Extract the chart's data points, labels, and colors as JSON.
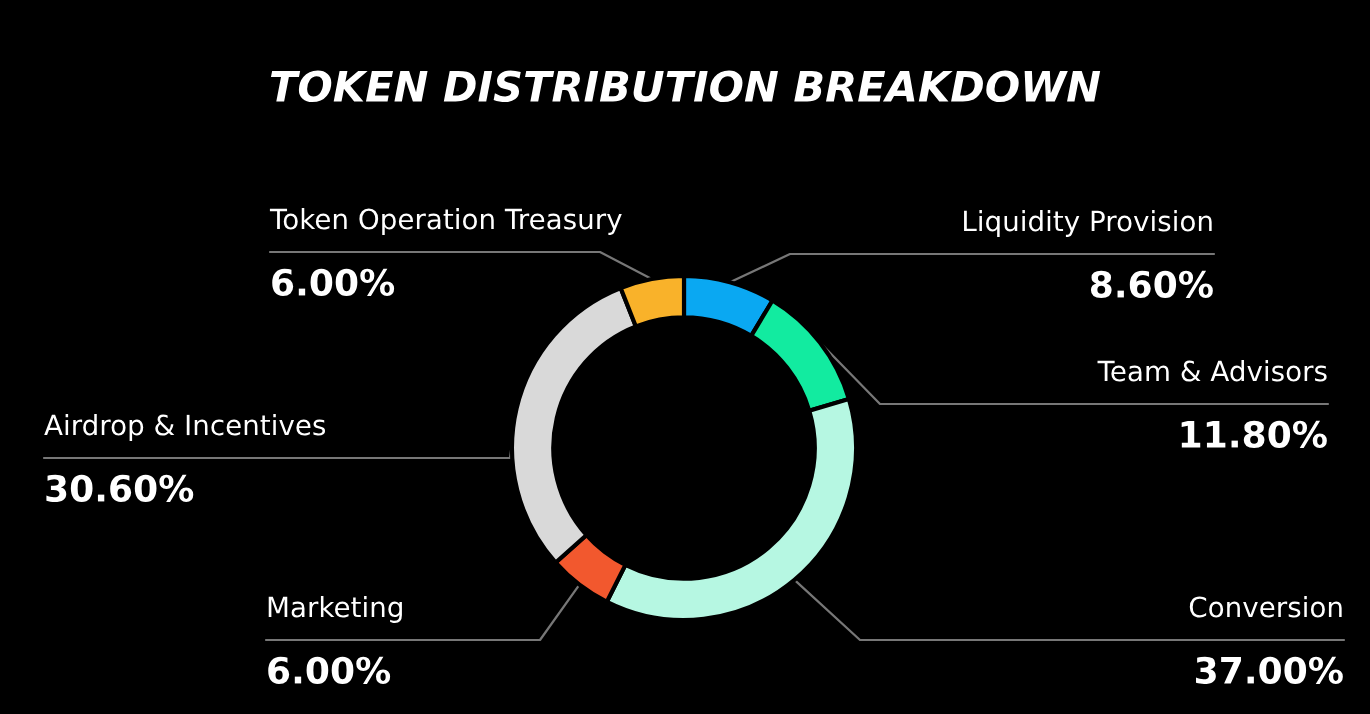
{
  "chart_data": {
    "type": "donut",
    "title": "TOKEN DISTRIBUTION BREAKDOWN",
    "categories": [
      "Liquidity Provision",
      "Team & Advisors",
      "Conversion",
      "Marketing",
      "Airdrop & Incentives",
      "Token Operation Treasury"
    ],
    "values": [
      8.6,
      11.8,
      37.0,
      6.0,
      30.6,
      6.0
    ],
    "value_labels": [
      "8.60%",
      "11.80%",
      "37.00%",
      "6.00%",
      "30.60%",
      "6.00%"
    ],
    "colors": [
      "#0aa8f2",
      "#12eba0",
      "#b6f7e2",
      "#f2582e",
      "#d9d9d9",
      "#f9b22a"
    ],
    "legend": false
  }
}
